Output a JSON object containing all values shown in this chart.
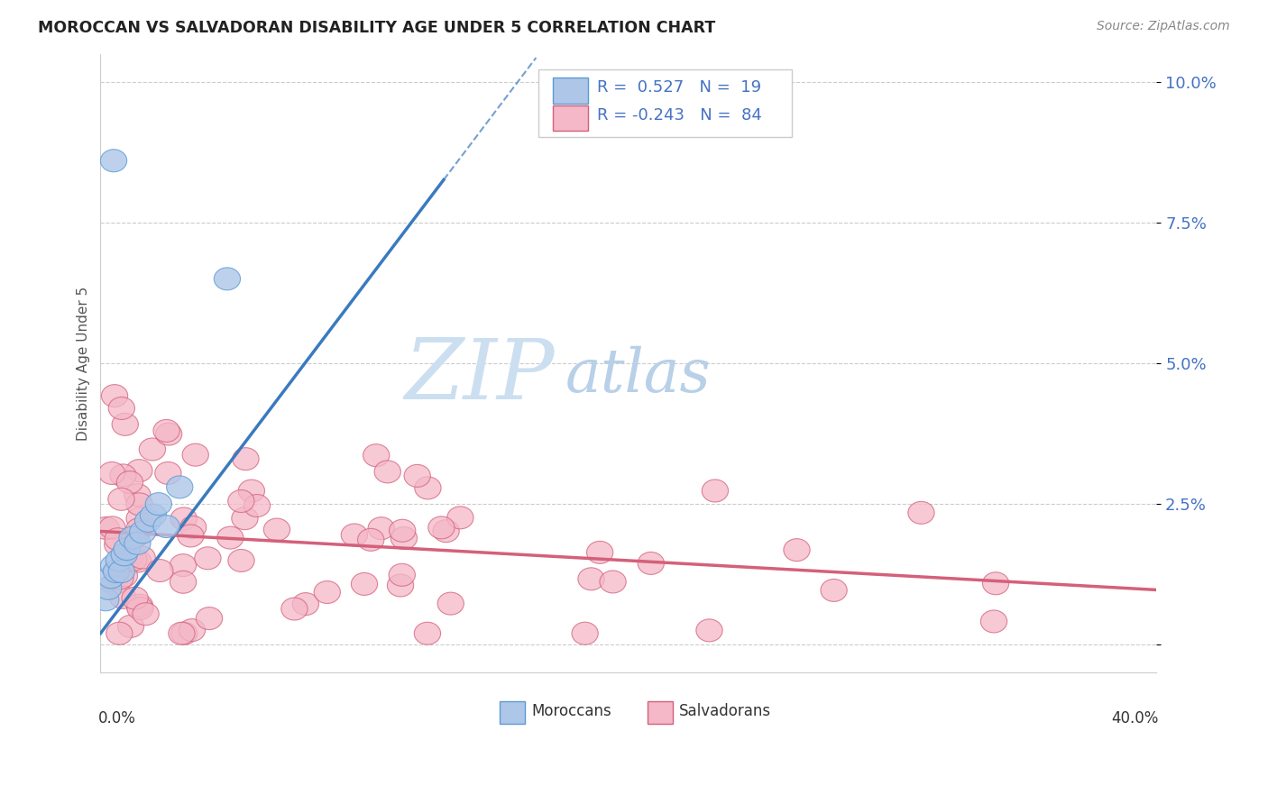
{
  "title": "MOROCCAN VS SALVADORAN DISABILITY AGE UNDER 5 CORRELATION CHART",
  "source": "Source: ZipAtlas.com",
  "ylabel": "Disability Age Under 5",
  "yticks": [
    0.0,
    0.025,
    0.05,
    0.075,
    0.1
  ],
  "ytick_labels": [
    "",
    "2.5%",
    "5.0%",
    "7.5%",
    "10.0%"
  ],
  "xlim": [
    0.0,
    0.4
  ],
  "ylim": [
    -0.005,
    0.105
  ],
  "moroccan_R": 0.527,
  "moroccan_N": 19,
  "salvadoran_R": -0.243,
  "salvadoran_N": 84,
  "blue_color": "#aec6e8",
  "blue_edge_color": "#5b9bd5",
  "pink_color": "#f4b8c8",
  "pink_edge_color": "#d4607a",
  "blue_line_color": "#3a7abf",
  "pink_line_color": "#d4607a",
  "legend_blue_label": "Moroccans",
  "legend_pink_label": "Salvadorans",
  "background_color": "#ffffff",
  "grid_color": "#cccccc",
  "axis_text_color": "#4472c4",
  "title_color": "#222222",
  "watermark_zip_color": "#dce8f5",
  "watermark_atlas_color": "#c5d8ee"
}
